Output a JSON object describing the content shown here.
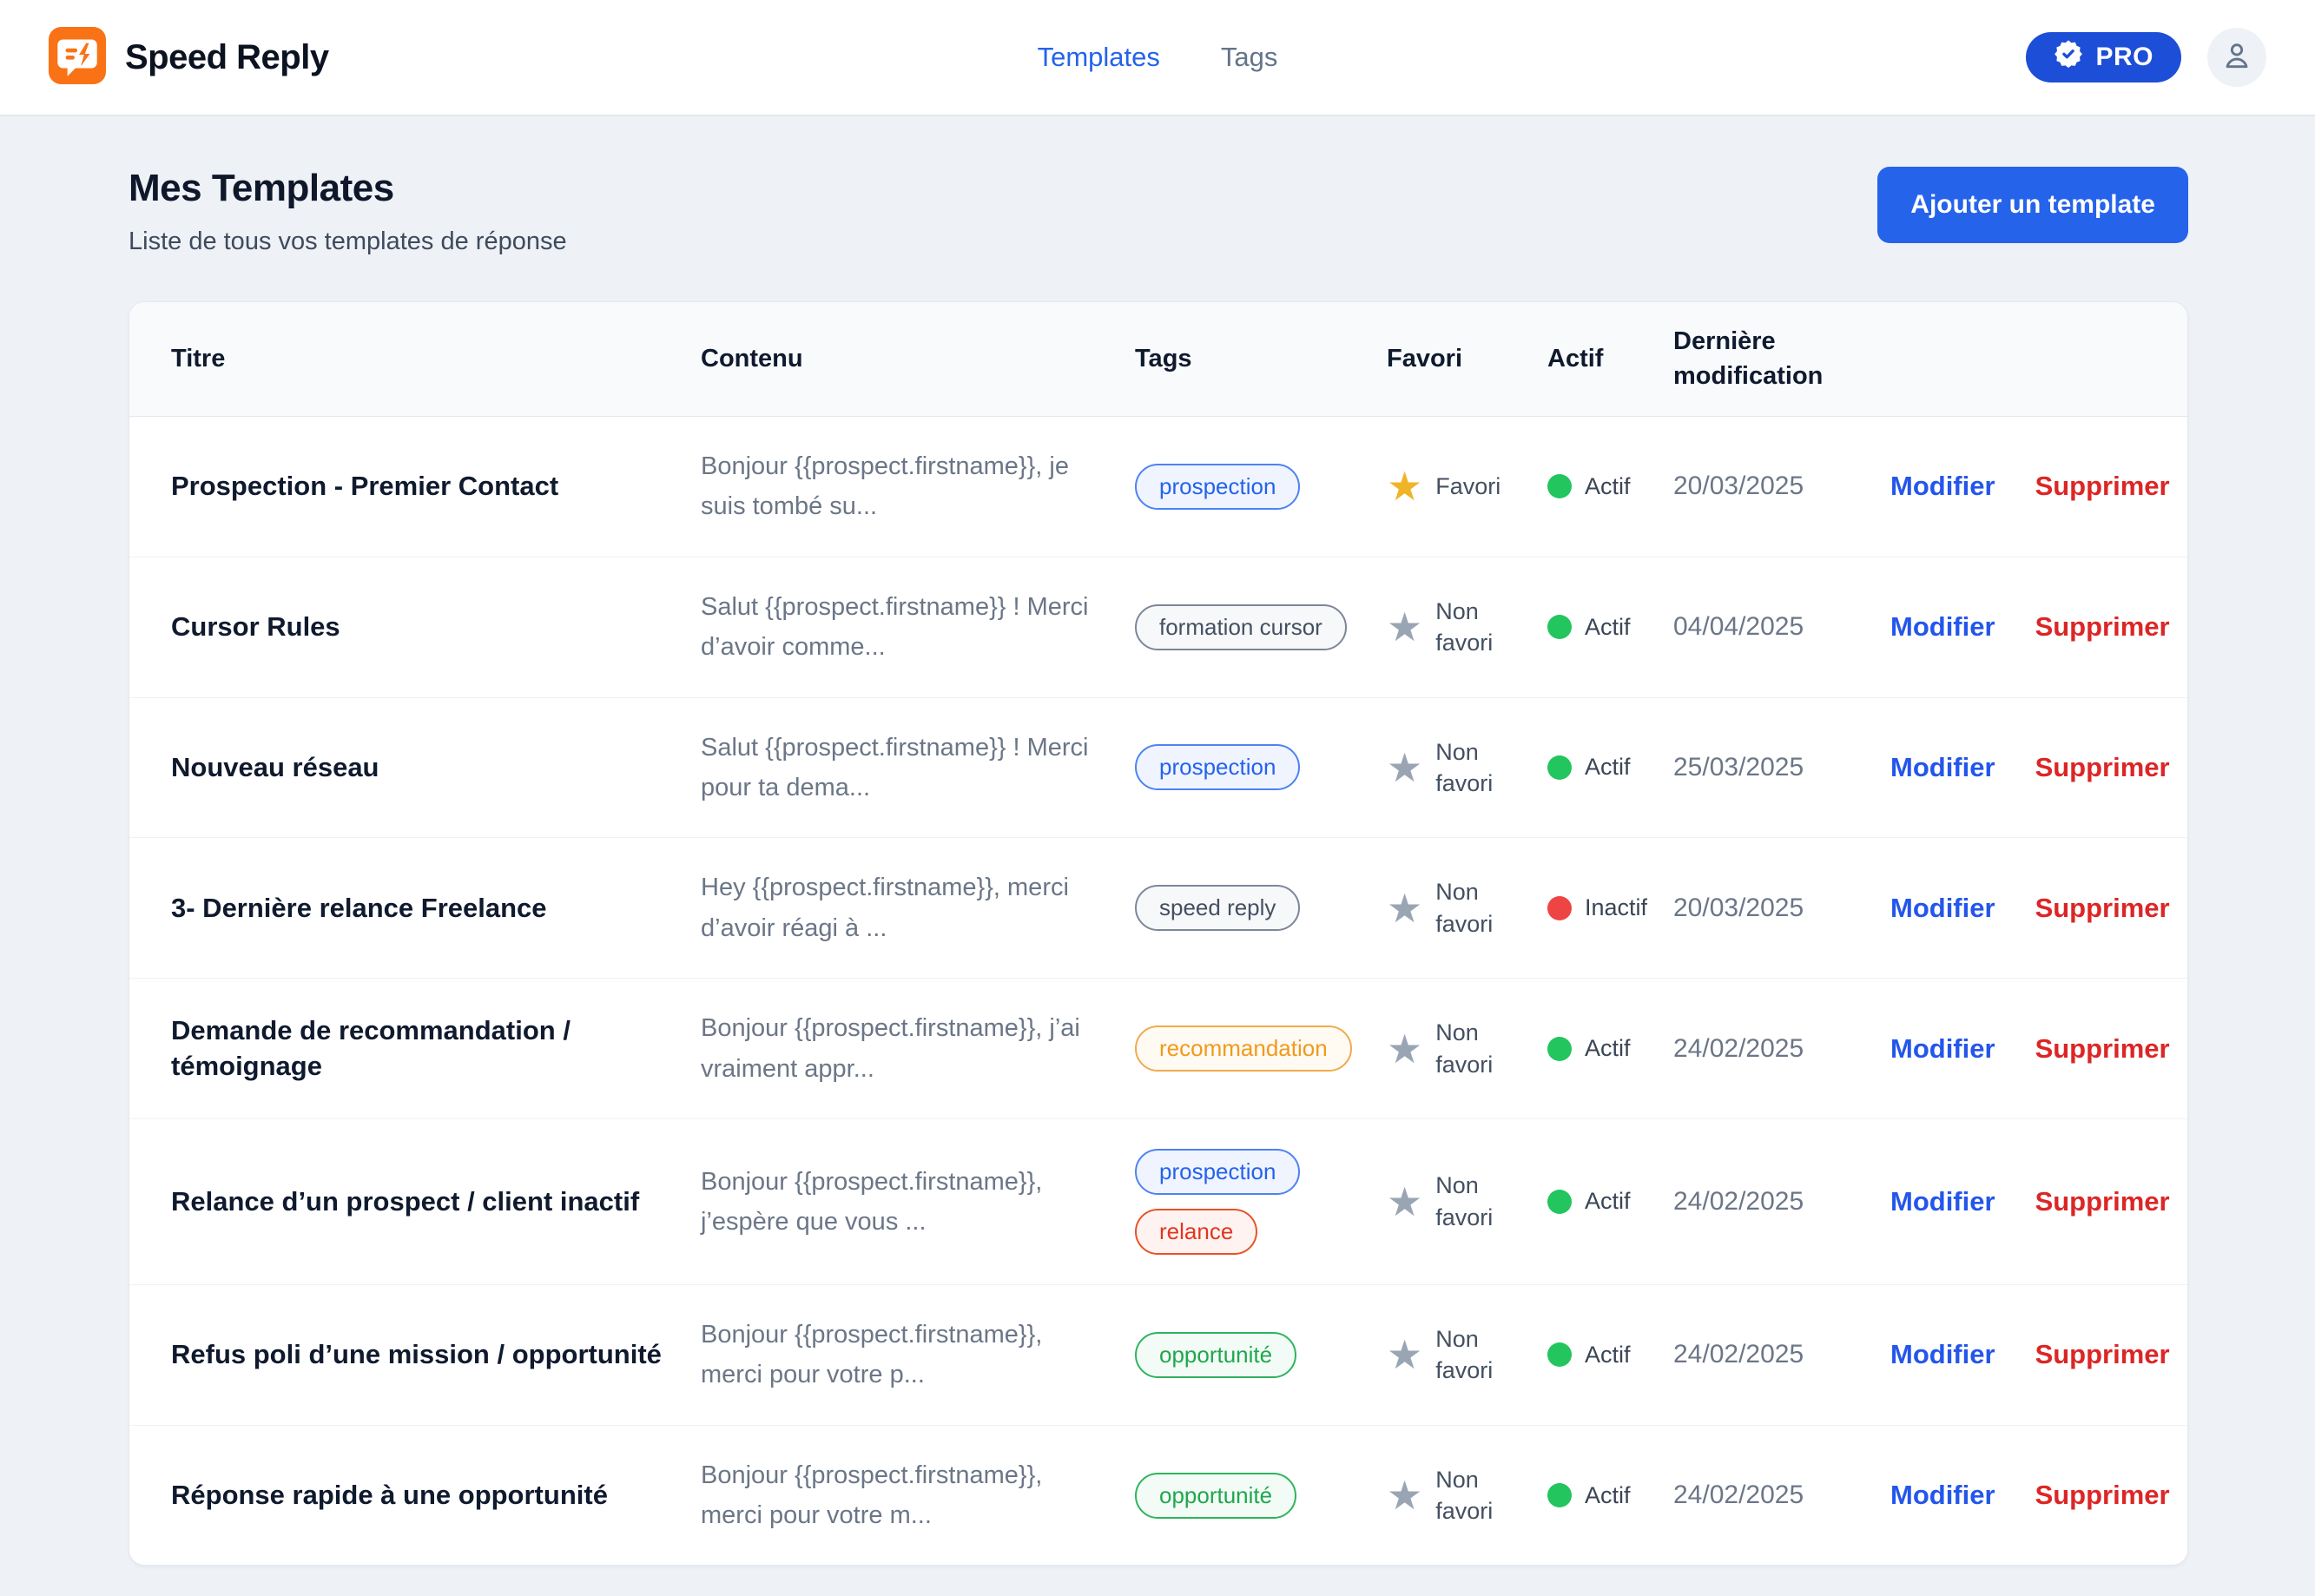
{
  "app": {
    "name": "Speed Reply"
  },
  "nav": {
    "items": [
      {
        "label": "Templates",
        "active": true
      },
      {
        "label": "Tags",
        "active": false
      }
    ],
    "pro_badge_label": "PRO"
  },
  "page": {
    "title": "Mes Templates",
    "subtitle": "Liste de tous vos templates de réponse",
    "add_button_label": "Ajouter un template"
  },
  "colors": {
    "brand_orange": "#f97316",
    "accent_blue": "#2563eb",
    "pro_badge_blue": "#1d4ed8",
    "active_green": "#22c55e",
    "inactive_red": "#ef4444",
    "favorite_yellow": "#f0b429",
    "delete_red": "#dc2626"
  },
  "table": {
    "headers": {
      "title": "Titre",
      "content": "Contenu",
      "tags": "Tags",
      "favorite": "Favori",
      "active": "Actif",
      "modified": "Dernière modification"
    },
    "favorite_on_label": "Favori",
    "favorite_off_label": "Non favori",
    "active_on_label": "Actif",
    "active_off_label": "Inactif",
    "actions": {
      "edit": "Modifier",
      "delete": "Supprimer"
    },
    "rows": [
      {
        "title": "Prospection - Premier Contact",
        "content": "Bonjour {{prospect.firstname}}, je suis tombé su...",
        "tags": [
          {
            "label": "prospection",
            "color": "blue"
          }
        ],
        "favorite": true,
        "active": true,
        "modified": "20/03/2025"
      },
      {
        "title": "Cursor Rules",
        "content": "Salut {{prospect.firstname}} ! Merci d’avoir comme...",
        "tags": [
          {
            "label": "formation cursor",
            "color": "gray"
          }
        ],
        "favorite": false,
        "active": true,
        "modified": "04/04/2025"
      },
      {
        "title": "Nouveau réseau",
        "content": "Salut {{prospect.firstname}} ! Merci pour ta dema...",
        "tags": [
          {
            "label": "prospection",
            "color": "blue"
          }
        ],
        "favorite": false,
        "active": true,
        "modified": "25/03/2025"
      },
      {
        "title": "3- Dernière relance Freelance",
        "content": "Hey {{prospect.firstname}}, merci d’avoir réagi à ...",
        "tags": [
          {
            "label": "speed reply",
            "color": "gray"
          }
        ],
        "favorite": false,
        "active": false,
        "modified": "20/03/2025"
      },
      {
        "title": "Demande de recommandation / témoignage",
        "content": "Bonjour {{prospect.firstname}}, j’ai vraiment appr...",
        "tags": [
          {
            "label": "recommandation",
            "color": "orange"
          }
        ],
        "favorite": false,
        "active": true,
        "modified": "24/02/2025"
      },
      {
        "title": "Relance d’un prospect / client inactif",
        "content": "Bonjour {{prospect.firstname}}, j’espère que vous ...",
        "tags": [
          {
            "label": "prospection",
            "color": "blue"
          },
          {
            "label": "relance",
            "color": "red"
          }
        ],
        "favorite": false,
        "active": true,
        "modified": "24/02/2025"
      },
      {
        "title": "Refus poli d’une mission / opportunité",
        "content": "Bonjour {{prospect.firstname}}, merci pour votre p...",
        "tags": [
          {
            "label": "opportunité",
            "color": "green"
          }
        ],
        "favorite": false,
        "active": true,
        "modified": "24/02/2025"
      },
      {
        "title": "Réponse rapide à une opportunité",
        "content": "Bonjour {{prospect.firstname}}, merci pour votre m...",
        "tags": [
          {
            "label": "opportunité",
            "color": "green"
          }
        ],
        "favorite": false,
        "active": true,
        "modified": "24/02/2025"
      }
    ]
  }
}
